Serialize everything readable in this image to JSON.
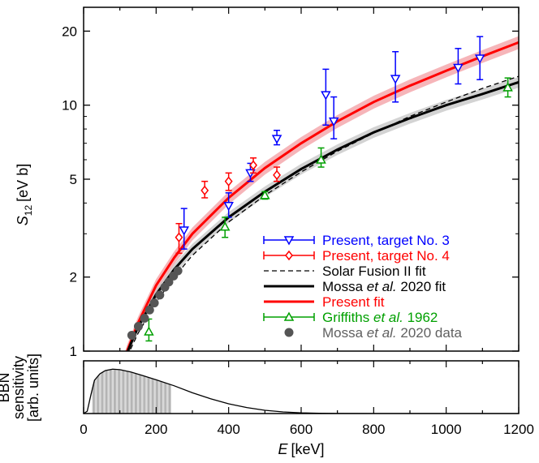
{
  "chart_data": [
    {
      "type": "scatter",
      "xlabel": "E",
      "xlabel_unit": "[keV]",
      "ylabel_main": "S",
      "ylabel_sub": "12",
      "ylabel_unit": "[eV b]",
      "xlim": [
        0,
        1200
      ],
      "ylim": [
        1,
        25
      ],
      "yscale": "log",
      "x_ticks": [
        0,
        200,
        400,
        600,
        800,
        1000,
        1200
      ],
      "y_ticks": [
        1,
        2,
        5,
        10,
        20
      ],
      "legend_position": "bottom-right",
      "legend": [
        {
          "text": "Present, target No. 3",
          "color": "#0000ff"
        },
        {
          "text": "Present, target No. 4",
          "color": "#ff0000"
        },
        {
          "text": "Solar Fusion II fit",
          "color": "#000000"
        },
        {
          "text_parts": [
            "Mossa ",
            "et al.",
            " 2020 fit"
          ],
          "color": "#000000"
        },
        {
          "text": "Present fit",
          "color": "#ff0000"
        },
        {
          "text_parts": [
            "Griffiths ",
            "et al.",
            " 1962"
          ],
          "color": "#00a000"
        },
        {
          "text_parts": [
            "Mossa  ",
            "et al.",
            " 2020 data"
          ],
          "color": "#606060"
        }
      ],
      "series": [
        {
          "name": "Present, target No. 3",
          "color": "#0000ff",
          "marker": "triangle-down",
          "points": [
            {
              "x": 277,
              "y": 3.1,
              "lo": 2.6,
              "hi": 3.8
            },
            {
              "x": 400,
              "y": 3.9,
              "lo": 3.5,
              "hi": 4.4
            },
            {
              "x": 460,
              "y": 5.3,
              "lo": 4.9,
              "hi": 5.8
            },
            {
              "x": 533,
              "y": 7.3,
              "lo": 6.9,
              "hi": 7.9
            },
            {
              "x": 668,
              "y": 11.0,
              "lo": 8.3,
              "hi": 14.0
            },
            {
              "x": 690,
              "y": 8.6,
              "lo": 7.3,
              "hi": 10.8
            },
            {
              "x": 860,
              "y": 12.8,
              "lo": 10.3,
              "hi": 16.5
            },
            {
              "x": 1033,
              "y": 14.2,
              "lo": 12.2,
              "hi": 17.0
            },
            {
              "x": 1093,
              "y": 15.5,
              "lo": 12.7,
              "hi": 19.0
            }
          ]
        },
        {
          "name": "Present, target No. 4",
          "color": "#ff0000",
          "marker": "diamond",
          "points": [
            {
              "x": 263,
              "y": 2.9,
              "lo": 2.5,
              "hi": 3.3
            },
            {
              "x": 334,
              "y": 4.5,
              "lo": 4.2,
              "hi": 4.9
            },
            {
              "x": 400,
              "y": 4.9,
              "lo": 4.5,
              "hi": 5.3
            },
            {
              "x": 468,
              "y": 5.7,
              "lo": 5.3,
              "hi": 6.1
            },
            {
              "x": 533,
              "y": 5.2,
              "lo": 4.9,
              "hi": 5.6
            }
          ]
        },
        {
          "name": "Griffiths et al. 1962",
          "color": "#00a000",
          "marker": "triangle-up",
          "points": [
            {
              "x": 180,
              "y": 1.2,
              "lo": 1.1,
              "hi": 1.35
            },
            {
              "x": 390,
              "y": 3.2,
              "lo": 2.9,
              "hi": 3.5
            },
            {
              "x": 500,
              "y": 4.3,
              "lo": 4.15,
              "hi": 4.45
            },
            {
              "x": 655,
              "y": 6.0,
              "lo": 5.6,
              "hi": 6.7
            },
            {
              "x": 1170,
              "y": 11.8,
              "lo": 10.8,
              "hi": 12.9
            }
          ]
        },
        {
          "name": "Mossa et al. 2020 data",
          "color": "#555555",
          "marker": "circle",
          "points": [
            {
              "x": 133,
              "y": 1.16
            },
            {
              "x": 151,
              "y": 1.26
            },
            {
              "x": 168,
              "y": 1.36
            },
            {
              "x": 182,
              "y": 1.47
            },
            {
              "x": 195,
              "y": 1.57
            },
            {
              "x": 210,
              "y": 1.69
            },
            {
              "x": 224,
              "y": 1.82
            },
            {
              "x": 235,
              "y": 1.91
            },
            {
              "x": 248,
              "y": 2.02
            },
            {
              "x": 260,
              "y": 2.12
            }
          ]
        }
      ],
      "lines": [
        {
          "name": "Present fit",
          "color": "#ff0000",
          "band_color": "#f4a3a8",
          "points": [
            [
              110,
              0.9
            ],
            [
              120,
              1.0
            ],
            [
              150,
              1.3
            ],
            [
              200,
              1.85
            ],
            [
              250,
              2.4
            ],
            [
              300,
              3.0
            ],
            [
              400,
              4.2
            ],
            [
              500,
              5.55
            ],
            [
              600,
              7.0
            ],
            [
              700,
              8.6
            ],
            [
              800,
              10.3
            ],
            [
              900,
              12.0
            ],
            [
              1000,
              13.8
            ],
            [
              1100,
              15.8
            ],
            [
              1200,
              18.0
            ]
          ],
          "band": [
            0.94,
            1.06
          ]
        },
        {
          "name": "Mossa et al. 2020 fit",
          "color": "#000000",
          "band_color": "#c8c8c8",
          "points": [
            [
              110,
              0.9
            ],
            [
              130,
              1.07
            ],
            [
              150,
              1.25
            ],
            [
              200,
              1.7
            ],
            [
              250,
              2.15
            ],
            [
              300,
              2.6
            ],
            [
              400,
              3.5
            ],
            [
              500,
              4.45
            ],
            [
              600,
              5.5
            ],
            [
              700,
              6.6
            ],
            [
              800,
              7.75
            ],
            [
              900,
              8.85
            ],
            [
              1000,
              10.0
            ],
            [
              1100,
              11.1
            ],
            [
              1200,
              12.4
            ]
          ],
          "band": [
            0.95,
            1.05
          ]
        },
        {
          "name": "Solar Fusion II fit",
          "color": "#000000",
          "dashed": true,
          "points": [
            [
              120,
              0.95
            ],
            [
              150,
              1.18
            ],
            [
              200,
              1.58
            ],
            [
              250,
              2.0
            ],
            [
              300,
              2.45
            ],
            [
              400,
              3.35
            ],
            [
              500,
              4.3
            ],
            [
              600,
              5.35
            ],
            [
              700,
              6.5
            ],
            [
              800,
              7.7
            ],
            [
              900,
              9.0
            ],
            [
              1000,
              10.3
            ],
            [
              1100,
              11.7
            ],
            [
              1200,
              13.1
            ]
          ]
        }
      ]
    },
    {
      "type": "area",
      "ylabel_lines": [
        "BBN",
        "sensitivity",
        "[arb. units]"
      ],
      "xlim": [
        0,
        1200
      ],
      "curve": [
        [
          0,
          0
        ],
        [
          10,
          0.05
        ],
        [
          20,
          0.4
        ],
        [
          30,
          0.72
        ],
        [
          45,
          0.86
        ],
        [
          60,
          0.93
        ],
        [
          80,
          0.96
        ],
        [
          100,
          0.95
        ],
        [
          130,
          0.9
        ],
        [
          160,
          0.83
        ],
        [
          200,
          0.73
        ],
        [
          250,
          0.6
        ],
        [
          300,
          0.45
        ],
        [
          350,
          0.32
        ],
        [
          400,
          0.21
        ],
        [
          450,
          0.13
        ],
        [
          500,
          0.07
        ],
        [
          550,
          0.035
        ],
        [
          600,
          0.015
        ],
        [
          650,
          0.006
        ],
        [
          700,
          0.002
        ],
        [
          800,
          0
        ],
        [
          1200,
          0
        ]
      ],
      "shaded_range": [
        25,
        240
      ]
    }
  ]
}
